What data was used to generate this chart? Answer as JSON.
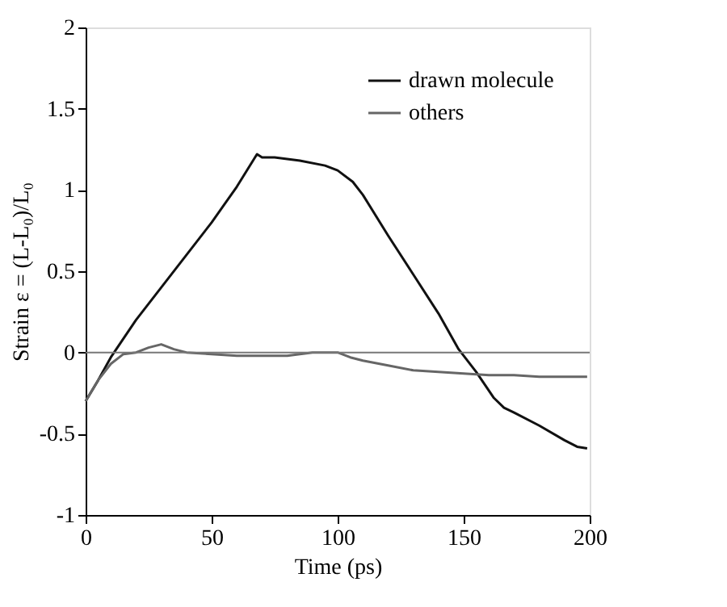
{
  "chart_data": {
    "type": "line",
    "xlabel": "Time (ps)",
    "ylabel": "Strain ε = (L-L₀)/L₀",
    "xlim": [
      0,
      200
    ],
    "ylim": [
      -1,
      2
    ],
    "xticks": [
      0,
      50,
      100,
      150,
      200
    ],
    "yticks": [
      -1,
      -0.5,
      0,
      0.5,
      1,
      1.5,
      2
    ],
    "grid": false,
    "legend": "top right",
    "line_style": "solid",
    "marker": "none",
    "ref_lines": [
      {
        "axis": "y",
        "value": 0,
        "color": "#777777"
      }
    ],
    "series": [
      {
        "name": "drawn molecule",
        "color": "#111111",
        "x": [
          0,
          5,
          10,
          20,
          30,
          40,
          50,
          60,
          68,
          70,
          75,
          85,
          95,
          100,
          106,
          110,
          120,
          130,
          140,
          148,
          155,
          162,
          166,
          170,
          180,
          190,
          195,
          199
        ],
        "values": [
          -0.3,
          -0.17,
          -0.03,
          0.2,
          0.4,
          0.6,
          0.8,
          1.02,
          1.22,
          1.2,
          1.2,
          1.18,
          1.15,
          1.12,
          1.05,
          0.97,
          0.72,
          0.48,
          0.24,
          0.02,
          -0.12,
          -0.28,
          -0.34,
          -0.37,
          -0.45,
          -0.54,
          -0.58,
          -0.59
        ]
      },
      {
        "name": "others",
        "color": "#666666",
        "x": [
          0,
          5,
          10,
          15,
          20,
          25,
          30,
          35,
          40,
          50,
          60,
          70,
          80,
          90,
          100,
          105,
          110,
          120,
          130,
          140,
          150,
          160,
          170,
          180,
          190,
          199
        ],
        "values": [
          -0.3,
          -0.17,
          -0.07,
          -0.01,
          0.0,
          0.03,
          0.05,
          0.02,
          0.0,
          -0.01,
          -0.02,
          -0.02,
          -0.02,
          0.0,
          0.0,
          -0.03,
          -0.05,
          -0.08,
          -0.11,
          -0.12,
          -0.13,
          -0.14,
          -0.14,
          -0.15,
          -0.15,
          -0.15
        ]
      }
    ]
  }
}
